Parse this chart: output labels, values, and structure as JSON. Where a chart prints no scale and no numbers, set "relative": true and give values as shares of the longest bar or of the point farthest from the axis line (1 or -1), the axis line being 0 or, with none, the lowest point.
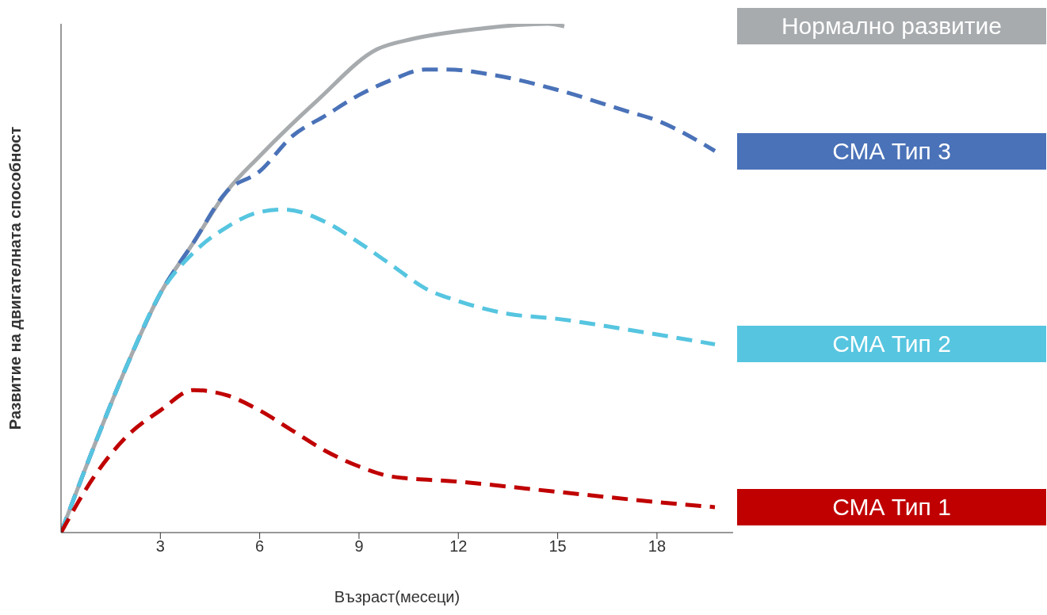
{
  "chart_data": {
    "type": "line",
    "relative": true,
    "xlabel": "Възраст(месеци)",
    "ylabel": "Развитие на двигателната способност",
    "xlim": [
      0,
      20.3
    ],
    "xticks": [
      3,
      6,
      9,
      12,
      15,
      18
    ],
    "grid": false,
    "legend": "right",
    "marker": "none",
    "series": [
      {
        "name": "Нормално развитие",
        "color": "#a7abae",
        "line_style": "solid",
        "x": [
          0,
          1,
          2,
          3,
          4,
          5,
          6,
          7.75,
          9.55,
          10.6,
          12.6,
          14.7,
          15.2
        ],
        "values": [
          0,
          0.17,
          0.33,
          0.47,
          0.57,
          0.67,
          0.74,
          0.85,
          0.95,
          0.97,
          0.99,
          1.0,
          0.995
        ]
      },
      {
        "name": "СМА Тип 3",
        "color": "#4a72b8",
        "line_style": "dashed",
        "x": [
          0,
          1,
          2,
          3,
          4,
          5,
          6,
          7,
          8,
          9,
          10,
          11,
          11.7,
          13,
          15,
          17,
          18,
          19.75
        ],
        "values": [
          0,
          0.17,
          0.33,
          0.47,
          0.57,
          0.67,
          0.71,
          0.78,
          0.82,
          0.86,
          0.89,
          0.91,
          0.91,
          0.9,
          0.87,
          0.83,
          0.81,
          0.75
        ]
      },
      {
        "name": "СМА Тип 2",
        "color": "#56c5e0",
        "line_style": "dashed",
        "x": [
          0,
          1,
          2,
          3,
          4,
          5,
          6,
          6.75,
          8,
          9,
          10,
          11,
          12,
          13.5,
          15,
          17,
          19.75
        ],
        "values": [
          0,
          0.17,
          0.33,
          0.47,
          0.55,
          0.6,
          0.63,
          0.635,
          0.61,
          0.57,
          0.525,
          0.48,
          0.455,
          0.43,
          0.42,
          0.4,
          0.37
        ]
      },
      {
        "name": "СМА Тип 1",
        "color": "#c00000",
        "line_style": "dashed",
        "x": [
          0,
          1,
          2,
          3,
          4,
          5,
          6,
          7,
          8,
          9,
          10,
          12,
          15,
          18,
          19.75
        ],
        "values": [
          0,
          0.11,
          0.19,
          0.24,
          0.28,
          0.27,
          0.24,
          0.2,
          0.16,
          0.13,
          0.11,
          0.1,
          0.08,
          0.06,
          0.05
        ]
      }
    ]
  }
}
